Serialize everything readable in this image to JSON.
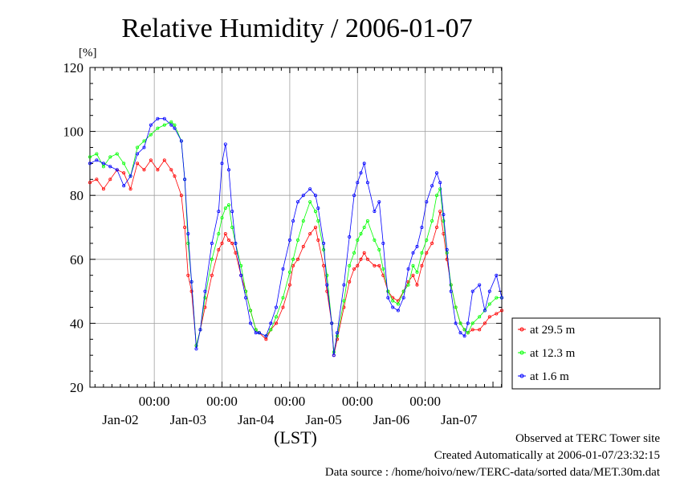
{
  "chart_data": {
    "type": "line",
    "title": "Relative Humidity / 2006-01-07",
    "ylabel": "[%]",
    "xlabel": "(LST)",
    "ylim": [
      20,
      120
    ],
    "yticks": [
      "20",
      "40",
      "60",
      "80",
      "100",
      "120"
    ],
    "xlim": [
      -0.95,
      5.13
    ],
    "x_time_ticks": [
      "00:00",
      "00:00",
      "00:00",
      "00:00",
      "00:00"
    ],
    "x_date_labels": [
      "Jan-02",
      "Jan-03",
      "Jan-04",
      "Jan-05",
      "Jan-06",
      "Jan-07"
    ],
    "grid": true,
    "legend_position": "right",
    "series": [
      {
        "name": "at 29.5 m",
        "color": "#ff0000",
        "points": [
          [
            -0.95,
            84
          ],
          [
            -0.85,
            85
          ],
          [
            -0.75,
            82
          ],
          [
            -0.65,
            85
          ],
          [
            -0.55,
            88
          ],
          [
            -0.45,
            87
          ],
          [
            -0.35,
            82
          ],
          [
            -0.25,
            90
          ],
          [
            -0.15,
            88
          ],
          [
            -0.05,
            91
          ],
          [
            0.05,
            88
          ],
          [
            0.15,
            91
          ],
          [
            0.25,
            88
          ],
          [
            0.3,
            86
          ],
          [
            0.4,
            80
          ],
          [
            0.45,
            70
          ],
          [
            0.5,
            55
          ],
          [
            0.55,
            50
          ],
          [
            0.62,
            33
          ],
          [
            0.68,
            38
          ],
          [
            0.75,
            45
          ],
          [
            0.85,
            55
          ],
          [
            0.95,
            63
          ],
          [
            1.0,
            65
          ],
          [
            1.05,
            68
          ],
          [
            1.1,
            66
          ],
          [
            1.15,
            65
          ],
          [
            1.2,
            62
          ],
          [
            1.28,
            55
          ],
          [
            1.35,
            50
          ],
          [
            1.42,
            44
          ],
          [
            1.5,
            38
          ],
          [
            1.55,
            37
          ],
          [
            1.65,
            35
          ],
          [
            1.72,
            38
          ],
          [
            1.8,
            40
          ],
          [
            1.9,
            45
          ],
          [
            2.0,
            52
          ],
          [
            2.05,
            58
          ],
          [
            2.12,
            60
          ],
          [
            2.2,
            64
          ],
          [
            2.3,
            68
          ],
          [
            2.38,
            70
          ],
          [
            2.42,
            66
          ],
          [
            2.5,
            58
          ],
          [
            2.55,
            50
          ],
          [
            2.62,
            40
          ],
          [
            2.65,
            30
          ],
          [
            2.7,
            35
          ],
          [
            2.8,
            45
          ],
          [
            2.88,
            53
          ],
          [
            2.95,
            57
          ],
          [
            3.0,
            58
          ],
          [
            3.05,
            60
          ],
          [
            3.1,
            62
          ],
          [
            3.15,
            60
          ],
          [
            3.25,
            58
          ],
          [
            3.32,
            58
          ],
          [
            3.38,
            55
          ],
          [
            3.45,
            50
          ],
          [
            3.52,
            48
          ],
          [
            3.6,
            47
          ],
          [
            3.68,
            50
          ],
          [
            3.75,
            53
          ],
          [
            3.82,
            55
          ],
          [
            3.88,
            52
          ],
          [
            3.95,
            58
          ],
          [
            4.02,
            62
          ],
          [
            4.1,
            65
          ],
          [
            4.17,
            70
          ],
          [
            4.22,
            75
          ],
          [
            4.27,
            68
          ],
          [
            4.32,
            60
          ],
          [
            4.38,
            52
          ],
          [
            4.45,
            45
          ],
          [
            4.52,
            40
          ],
          [
            4.58,
            38
          ],
          [
            4.63,
            37
          ],
          [
            4.7,
            38
          ],
          [
            4.8,
            38
          ],
          [
            4.88,
            40
          ],
          [
            4.95,
            42
          ],
          [
            5.05,
            43
          ],
          [
            5.13,
            44
          ]
        ]
      },
      {
        "name": "at 12.3 m",
        "color": "#00ff00",
        "points": [
          [
            -0.95,
            92
          ],
          [
            -0.85,
            93
          ],
          [
            -0.75,
            89
          ],
          [
            -0.65,
            92
          ],
          [
            -0.55,
            93
          ],
          [
            -0.45,
            90
          ],
          [
            -0.35,
            86
          ],
          [
            -0.25,
            95
          ],
          [
            -0.15,
            97
          ],
          [
            -0.05,
            99
          ],
          [
            0.05,
            101
          ],
          [
            0.15,
            102
          ],
          [
            0.25,
            103
          ],
          [
            0.3,
            102
          ],
          [
            0.4,
            97
          ],
          [
            0.45,
            85
          ],
          [
            0.5,
            65
          ],
          [
            0.55,
            53
          ],
          [
            0.62,
            33
          ],
          [
            0.68,
            38
          ],
          [
            0.75,
            48
          ],
          [
            0.85,
            60
          ],
          [
            0.95,
            68
          ],
          [
            1.0,
            73
          ],
          [
            1.05,
            76
          ],
          [
            1.1,
            77
          ],
          [
            1.15,
            70
          ],
          [
            1.2,
            65
          ],
          [
            1.28,
            58
          ],
          [
            1.35,
            50
          ],
          [
            1.42,
            44
          ],
          [
            1.5,
            38
          ],
          [
            1.55,
            37
          ],
          [
            1.65,
            36
          ],
          [
            1.72,
            38
          ],
          [
            1.8,
            42
          ],
          [
            1.9,
            48
          ],
          [
            2.0,
            56
          ],
          [
            2.05,
            60
          ],
          [
            2.12,
            66
          ],
          [
            2.2,
            72
          ],
          [
            2.3,
            78
          ],
          [
            2.38,
            75
          ],
          [
            2.42,
            72
          ],
          [
            2.5,
            63
          ],
          [
            2.55,
            55
          ],
          [
            2.62,
            40
          ],
          [
            2.65,
            31
          ],
          [
            2.7,
            36
          ],
          [
            2.8,
            47
          ],
          [
            2.88,
            58
          ],
          [
            2.95,
            62
          ],
          [
            3.0,
            66
          ],
          [
            3.05,
            68
          ],
          [
            3.1,
            70
          ],
          [
            3.15,
            72
          ],
          [
            3.25,
            66
          ],
          [
            3.32,
            63
          ],
          [
            3.38,
            57
          ],
          [
            3.45,
            50
          ],
          [
            3.52,
            47
          ],
          [
            3.6,
            46
          ],
          [
            3.68,
            50
          ],
          [
            3.75,
            52
          ],
          [
            3.82,
            58
          ],
          [
            3.88,
            56
          ],
          [
            3.95,
            62
          ],
          [
            4.02,
            66
          ],
          [
            4.1,
            72
          ],
          [
            4.17,
            80
          ],
          [
            4.22,
            82
          ],
          [
            4.27,
            72
          ],
          [
            4.32,
            62
          ],
          [
            4.38,
            52
          ],
          [
            4.45,
            45
          ],
          [
            4.52,
            40
          ],
          [
            4.58,
            38
          ],
          [
            4.63,
            37
          ],
          [
            4.7,
            40
          ],
          [
            4.8,
            42
          ],
          [
            4.88,
            44
          ],
          [
            4.95,
            46
          ],
          [
            5.05,
            48
          ],
          [
            5.13,
            48
          ]
        ]
      },
      {
        "name": "at 1.6 m",
        "color": "#0000ff",
        "points": [
          [
            -0.95,
            90
          ],
          [
            -0.85,
            91
          ],
          [
            -0.75,
            90
          ],
          [
            -0.65,
            89
          ],
          [
            -0.55,
            88
          ],
          [
            -0.45,
            83
          ],
          [
            -0.35,
            86
          ],
          [
            -0.25,
            93
          ],
          [
            -0.15,
            95
          ],
          [
            -0.05,
            102
          ],
          [
            0.05,
            104
          ],
          [
            0.15,
            104
          ],
          [
            0.25,
            102
          ],
          [
            0.3,
            101
          ],
          [
            0.4,
            97
          ],
          [
            0.45,
            85
          ],
          [
            0.5,
            68
          ],
          [
            0.55,
            53
          ],
          [
            0.62,
            32
          ],
          [
            0.68,
            38
          ],
          [
            0.75,
            50
          ],
          [
            0.85,
            65
          ],
          [
            0.95,
            75
          ],
          [
            1.0,
            90
          ],
          [
            1.05,
            96
          ],
          [
            1.1,
            88
          ],
          [
            1.15,
            75
          ],
          [
            1.2,
            65
          ],
          [
            1.28,
            55
          ],
          [
            1.35,
            48
          ],
          [
            1.42,
            40
          ],
          [
            1.5,
            37
          ],
          [
            1.55,
            37
          ],
          [
            1.65,
            36
          ],
          [
            1.72,
            40
          ],
          [
            1.8,
            45
          ],
          [
            1.9,
            57
          ],
          [
            2.0,
            66
          ],
          [
            2.05,
            72
          ],
          [
            2.12,
            78
          ],
          [
            2.2,
            80
          ],
          [
            2.3,
            82
          ],
          [
            2.38,
            80
          ],
          [
            2.42,
            76
          ],
          [
            2.5,
            65
          ],
          [
            2.55,
            52
          ],
          [
            2.62,
            40
          ],
          [
            2.65,
            30
          ],
          [
            2.7,
            37
          ],
          [
            2.8,
            52
          ],
          [
            2.88,
            67
          ],
          [
            2.95,
            80
          ],
          [
            3.0,
            84
          ],
          [
            3.05,
            87
          ],
          [
            3.1,
            90
          ],
          [
            3.15,
            84
          ],
          [
            3.25,
            75
          ],
          [
            3.32,
            78
          ],
          [
            3.38,
            65
          ],
          [
            3.45,
            48
          ],
          [
            3.52,
            45
          ],
          [
            3.6,
            44
          ],
          [
            3.68,
            48
          ],
          [
            3.75,
            57
          ],
          [
            3.82,
            62
          ],
          [
            3.88,
            64
          ],
          [
            3.95,
            70
          ],
          [
            4.02,
            78
          ],
          [
            4.1,
            83
          ],
          [
            4.17,
            87
          ],
          [
            4.22,
            84
          ],
          [
            4.27,
            74
          ],
          [
            4.32,
            63
          ],
          [
            4.38,
            50
          ],
          [
            4.45,
            40
          ],
          [
            4.52,
            37
          ],
          [
            4.58,
            36
          ],
          [
            4.63,
            40
          ],
          [
            4.7,
            50
          ],
          [
            4.8,
            52
          ],
          [
            4.88,
            44
          ],
          [
            4.95,
            50
          ],
          [
            5.05,
            55
          ],
          [
            5.13,
            48
          ]
        ]
      }
    ]
  },
  "footer": {
    "observed": "Observed at TERC Tower site",
    "created": "Created Automatically at 2006-01-07/23:32:15",
    "source": "Data source : /home/hoivo/new/TERC-data/sorted  data/MET.30m.dat"
  }
}
